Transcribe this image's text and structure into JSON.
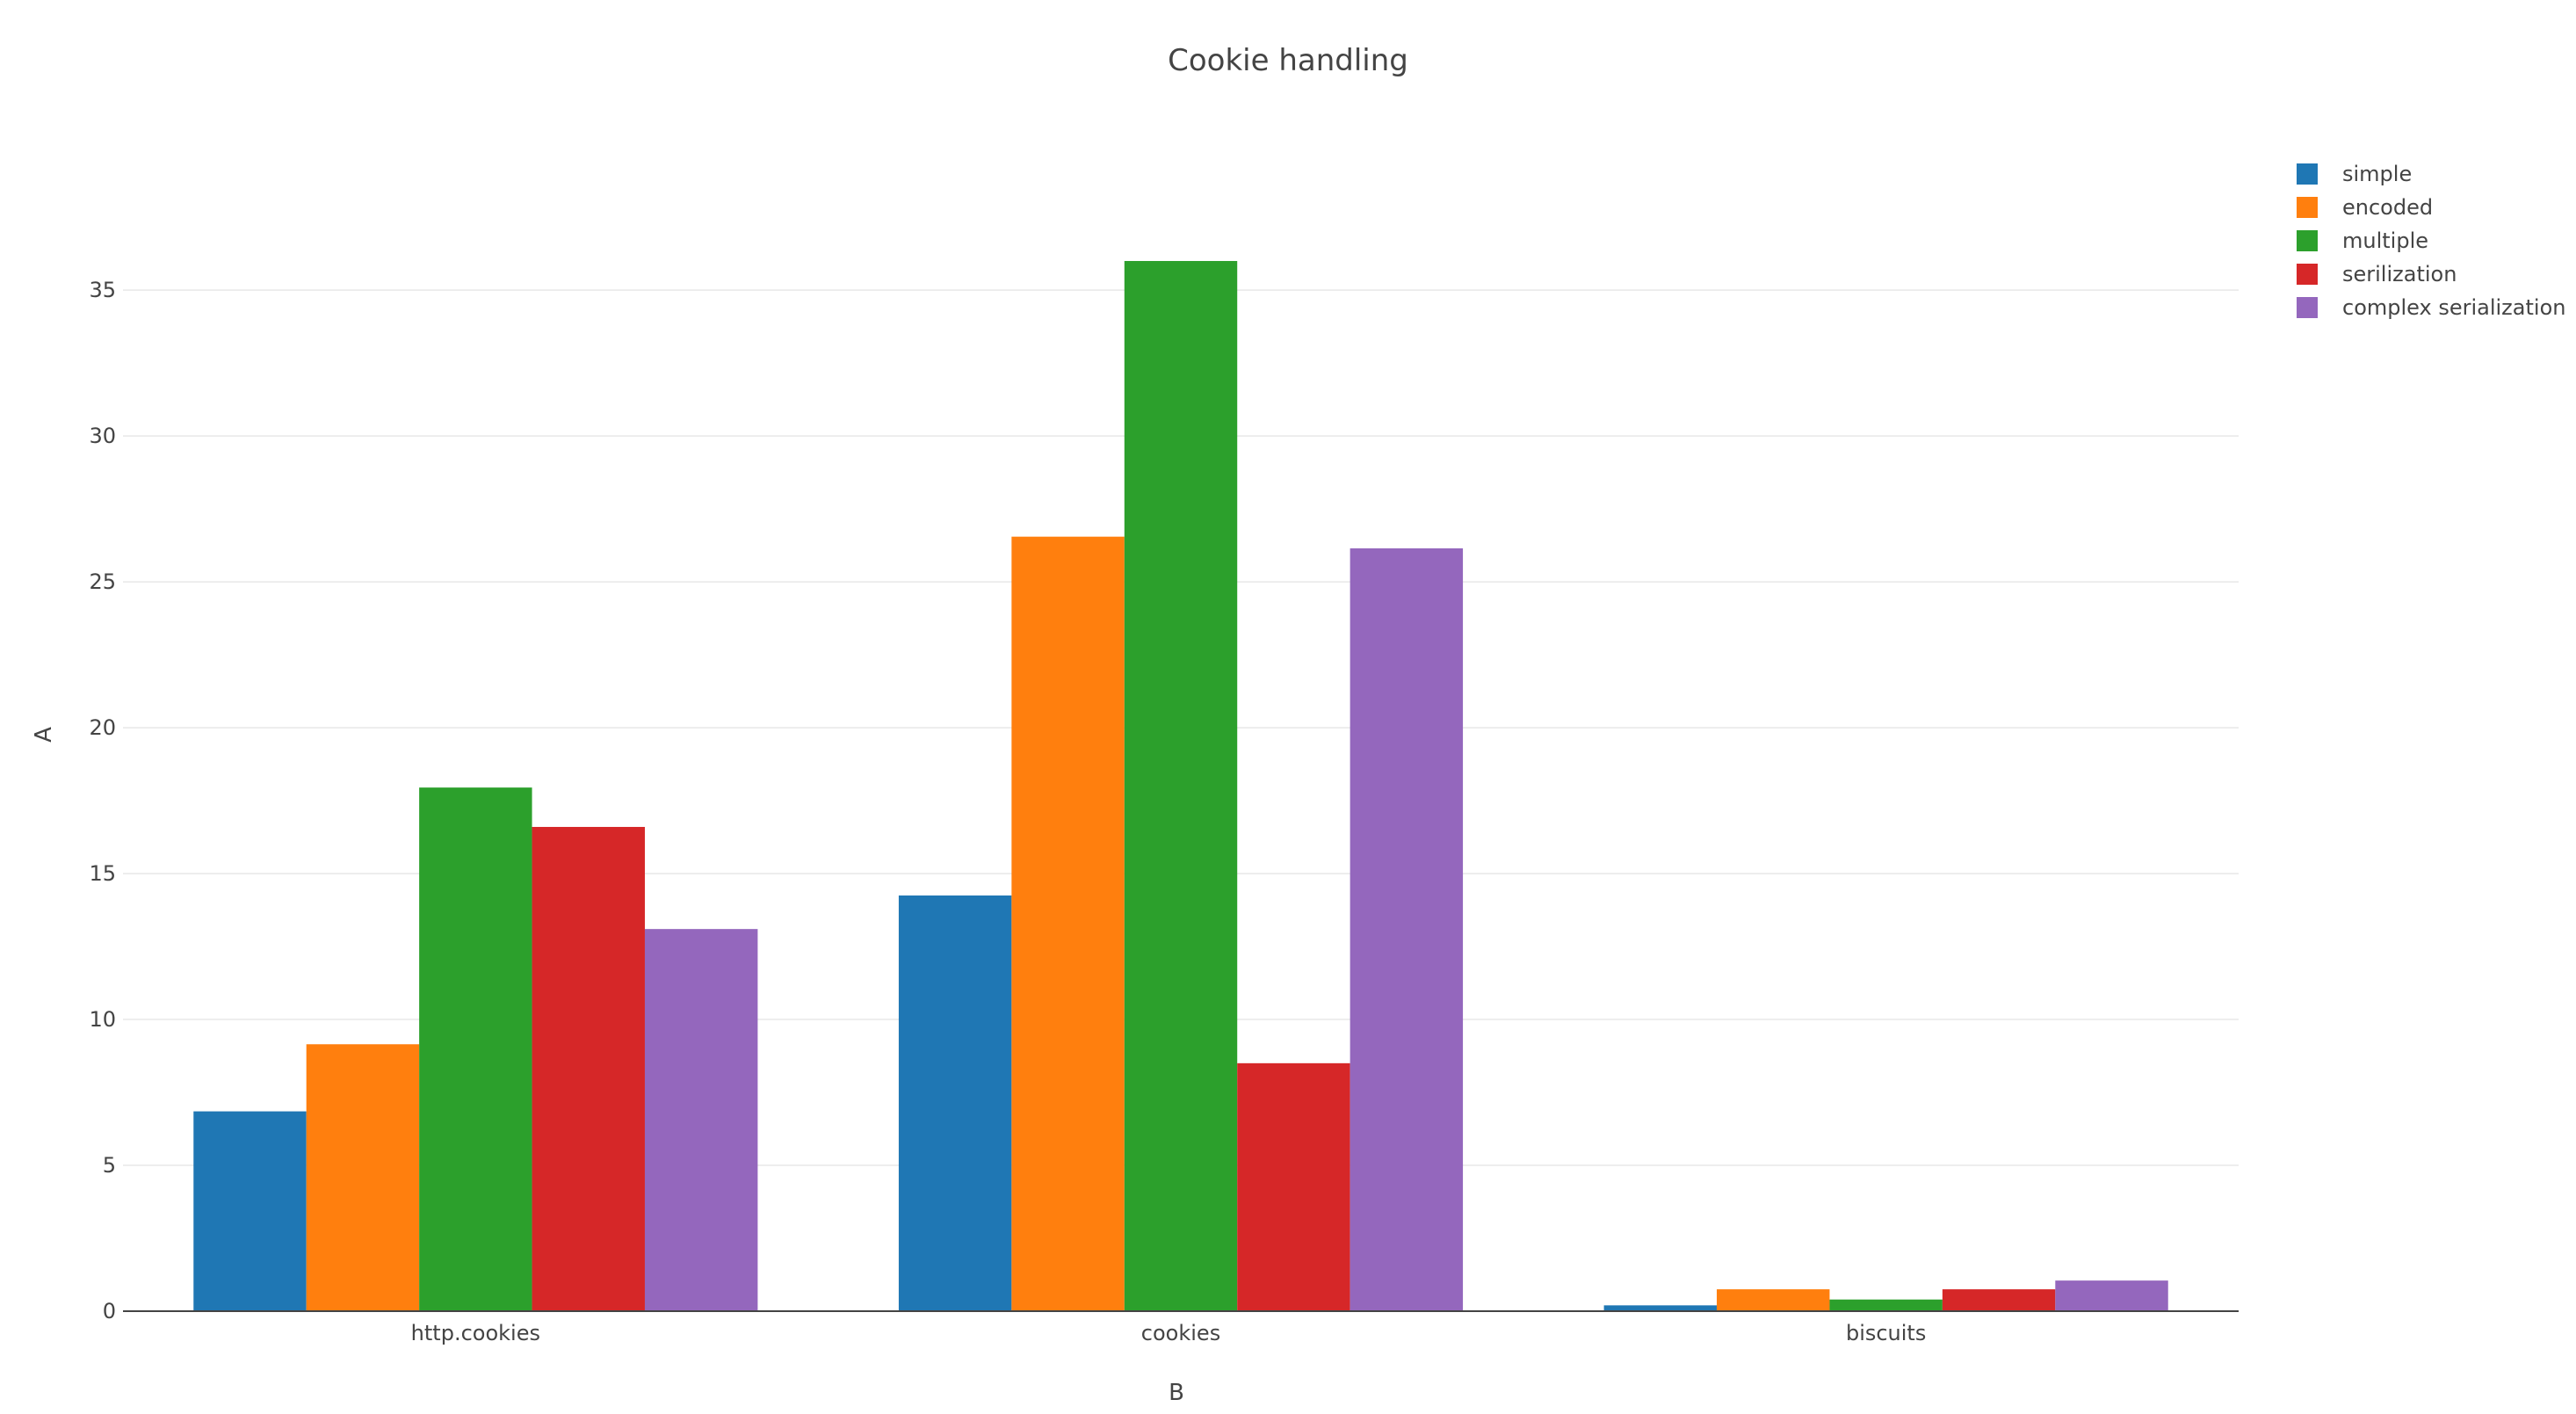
{
  "chart_data": {
    "type": "bar",
    "title": "Cookie handling",
    "xlabel": "B",
    "ylabel": "A",
    "categories": [
      "http.cookies",
      "cookies",
      "biscuits"
    ],
    "ylim": [
      0,
      38.5
    ],
    "yticks": [
      0,
      5,
      10,
      15,
      20,
      25,
      30,
      35
    ],
    "grid": true,
    "legend_position": "top-right",
    "series": [
      {
        "name": "simple",
        "color": "#1f77b4",
        "values": [
          6.85,
          14.25,
          0.2
        ]
      },
      {
        "name": "encoded",
        "color": "#ff7f0e",
        "values": [
          9.15,
          26.55,
          0.75
        ]
      },
      {
        "name": "multiple",
        "color": "#2ca02c",
        "values": [
          17.95,
          36.0,
          0.4
        ]
      },
      {
        "name": "serilization",
        "color": "#d62728",
        "values": [
          16.6,
          8.5,
          0.75
        ]
      },
      {
        "name": "complex serialization",
        "color": "#9467bd",
        "values": [
          13.1,
          26.15,
          1.05
        ]
      }
    ]
  }
}
